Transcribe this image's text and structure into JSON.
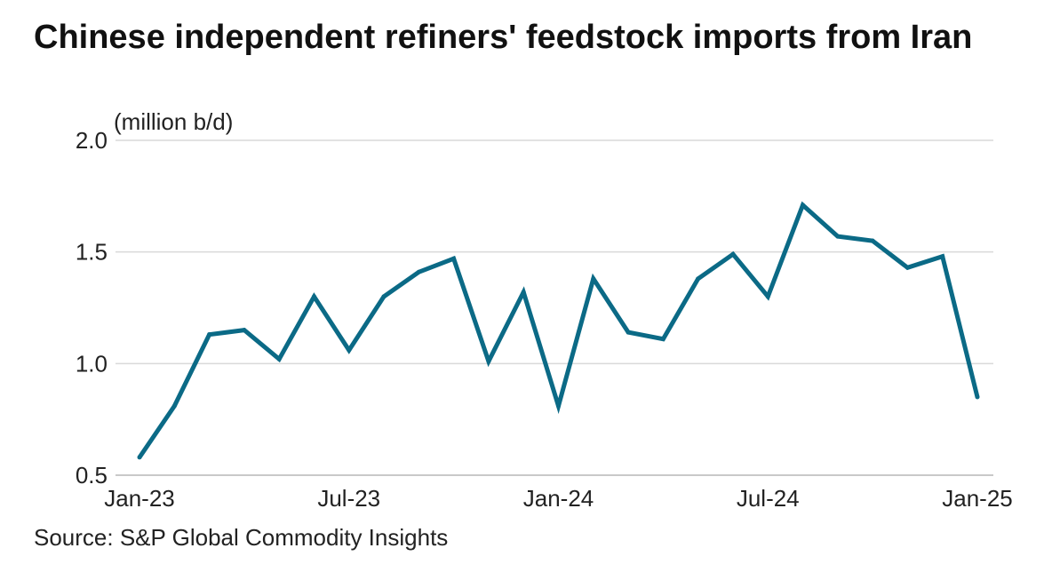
{
  "title": "Chinese independent refiners' feedstock imports from Iran",
  "source": "Source: S&P Global Commodity Insights",
  "colors": {
    "line": "#0b6a86",
    "grid": "#d9d9d9",
    "text": "#222222"
  },
  "chart_data": {
    "type": "line",
    "unit_label": "(million b/d)",
    "ylim": [
      0.5,
      2.0
    ],
    "yticks": [
      "0.5",
      "1.0",
      "1.5",
      "2.0"
    ],
    "xticks": [
      "Jan-23",
      "Jul-23",
      "Jan-24",
      "Jul-24",
      "Jan-25"
    ],
    "grid": true,
    "x": [
      "Jan-23",
      "Feb-23",
      "Mar-23",
      "Apr-23",
      "May-23",
      "Jun-23",
      "Jul-23",
      "Aug-23",
      "Sep-23",
      "Oct-23",
      "Nov-23",
      "Dec-23",
      "Jan-24",
      "Feb-24",
      "Mar-24",
      "Apr-24",
      "May-24",
      "Jun-24",
      "Jul-24",
      "Aug-24",
      "Sep-24",
      "Oct-24",
      "Nov-24",
      "Dec-24",
      "Jan-25"
    ],
    "values": [
      0.58,
      0.81,
      1.13,
      1.15,
      1.02,
      1.3,
      1.06,
      1.3,
      1.41,
      1.47,
      1.01,
      1.32,
      0.81,
      1.38,
      1.14,
      1.11,
      1.38,
      1.49,
      1.3,
      1.71,
      1.57,
      1.55,
      1.43,
      1.48,
      0.85
    ]
  }
}
